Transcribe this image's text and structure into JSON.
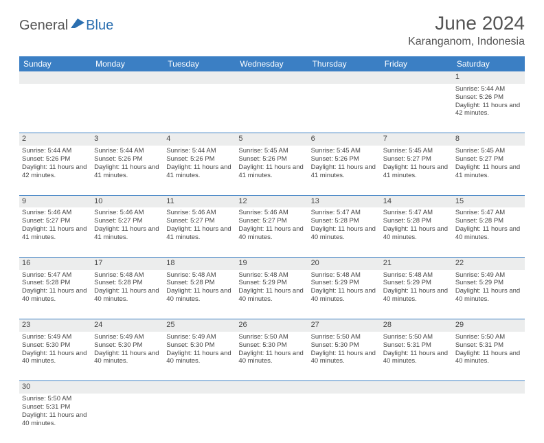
{
  "logo": {
    "part1": "General",
    "part2": "Blue"
  },
  "title": "June 2024",
  "location": "Karanganom, Indonesia",
  "colors": {
    "header_bg": "#3b7fc4",
    "header_text": "#ffffff",
    "daynum_bg": "#eceded",
    "cell_text": "#444444",
    "border": "#3b7fc4",
    "logo_gray": "#555555",
    "logo_blue": "#2b6fb0"
  },
  "weekdays": [
    "Sunday",
    "Monday",
    "Tuesday",
    "Wednesday",
    "Thursday",
    "Friday",
    "Saturday"
  ],
  "weeks": [
    {
      "nums": [
        "",
        "",
        "",
        "",
        "",
        "",
        "1"
      ],
      "details": [
        "",
        "",
        "",
        "",
        "",
        "",
        "Sunrise: 5:44 AM\nSunset: 5:26 PM\nDaylight: 11 hours and 42 minutes."
      ]
    },
    {
      "nums": [
        "2",
        "3",
        "4",
        "5",
        "6",
        "7",
        "8"
      ],
      "details": [
        "Sunrise: 5:44 AM\nSunset: 5:26 PM\nDaylight: 11 hours and 42 minutes.",
        "Sunrise: 5:44 AM\nSunset: 5:26 PM\nDaylight: 11 hours and 41 minutes.",
        "Sunrise: 5:44 AM\nSunset: 5:26 PM\nDaylight: 11 hours and 41 minutes.",
        "Sunrise: 5:45 AM\nSunset: 5:26 PM\nDaylight: 11 hours and 41 minutes.",
        "Sunrise: 5:45 AM\nSunset: 5:26 PM\nDaylight: 11 hours and 41 minutes.",
        "Sunrise: 5:45 AM\nSunset: 5:27 PM\nDaylight: 11 hours and 41 minutes.",
        "Sunrise: 5:45 AM\nSunset: 5:27 PM\nDaylight: 11 hours and 41 minutes."
      ]
    },
    {
      "nums": [
        "9",
        "10",
        "11",
        "12",
        "13",
        "14",
        "15"
      ],
      "details": [
        "Sunrise: 5:46 AM\nSunset: 5:27 PM\nDaylight: 11 hours and 41 minutes.",
        "Sunrise: 5:46 AM\nSunset: 5:27 PM\nDaylight: 11 hours and 41 minutes.",
        "Sunrise: 5:46 AM\nSunset: 5:27 PM\nDaylight: 11 hours and 41 minutes.",
        "Sunrise: 5:46 AM\nSunset: 5:27 PM\nDaylight: 11 hours and 40 minutes.",
        "Sunrise: 5:47 AM\nSunset: 5:28 PM\nDaylight: 11 hours and 40 minutes.",
        "Sunrise: 5:47 AM\nSunset: 5:28 PM\nDaylight: 11 hours and 40 minutes.",
        "Sunrise: 5:47 AM\nSunset: 5:28 PM\nDaylight: 11 hours and 40 minutes."
      ]
    },
    {
      "nums": [
        "16",
        "17",
        "18",
        "19",
        "20",
        "21",
        "22"
      ],
      "details": [
        "Sunrise: 5:47 AM\nSunset: 5:28 PM\nDaylight: 11 hours and 40 minutes.",
        "Sunrise: 5:48 AM\nSunset: 5:28 PM\nDaylight: 11 hours and 40 minutes.",
        "Sunrise: 5:48 AM\nSunset: 5:28 PM\nDaylight: 11 hours and 40 minutes.",
        "Sunrise: 5:48 AM\nSunset: 5:29 PM\nDaylight: 11 hours and 40 minutes.",
        "Sunrise: 5:48 AM\nSunset: 5:29 PM\nDaylight: 11 hours and 40 minutes.",
        "Sunrise: 5:48 AM\nSunset: 5:29 PM\nDaylight: 11 hours and 40 minutes.",
        "Sunrise: 5:49 AM\nSunset: 5:29 PM\nDaylight: 11 hours and 40 minutes."
      ]
    },
    {
      "nums": [
        "23",
        "24",
        "25",
        "26",
        "27",
        "28",
        "29"
      ],
      "details": [
        "Sunrise: 5:49 AM\nSunset: 5:30 PM\nDaylight: 11 hours and 40 minutes.",
        "Sunrise: 5:49 AM\nSunset: 5:30 PM\nDaylight: 11 hours and 40 minutes.",
        "Sunrise: 5:49 AM\nSunset: 5:30 PM\nDaylight: 11 hours and 40 minutes.",
        "Sunrise: 5:50 AM\nSunset: 5:30 PM\nDaylight: 11 hours and 40 minutes.",
        "Sunrise: 5:50 AM\nSunset: 5:30 PM\nDaylight: 11 hours and 40 minutes.",
        "Sunrise: 5:50 AM\nSunset: 5:31 PM\nDaylight: 11 hours and 40 minutes.",
        "Sunrise: 5:50 AM\nSunset: 5:31 PM\nDaylight: 11 hours and 40 minutes."
      ]
    },
    {
      "nums": [
        "30",
        "",
        "",
        "",
        "",
        "",
        ""
      ],
      "details": [
        "Sunrise: 5:50 AM\nSunset: 5:31 PM\nDaylight: 11 hours and 40 minutes.",
        "",
        "",
        "",
        "",
        "",
        ""
      ]
    }
  ]
}
